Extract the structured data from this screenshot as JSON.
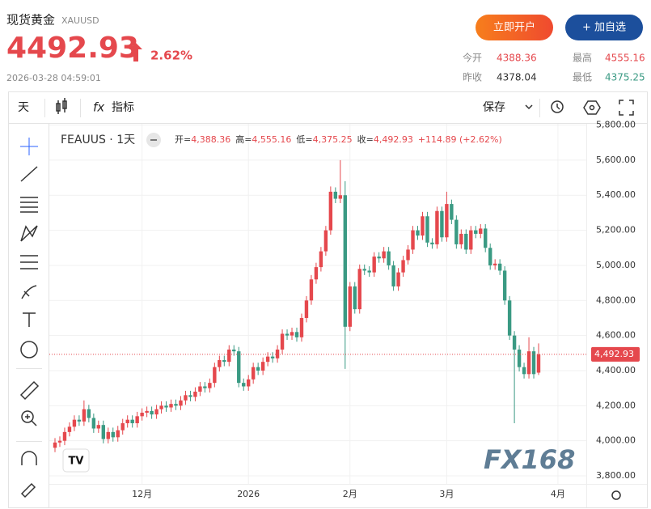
{
  "header": {
    "title": "现货黄金",
    "symbol": "XAUUSD",
    "price": "4492.93",
    "change": "2.62%",
    "timestamp": "2026-03-28 04:59:01",
    "buttons": [
      "立即开户",
      "+ 加自选"
    ],
    "stats": [
      {
        "label": "今开",
        "value": "4388.36"
      },
      {
        "label": "最高",
        "value": "4555.16"
      },
      {
        "label": "昨收",
        "value": "4378.04"
      },
      {
        "label": "最低",
        "value": "4375.25"
      }
    ]
  },
  "toolbar": {
    "interval": "天",
    "indicators": "指标",
    "save": "保存"
  },
  "watermark": "FX168",
  "chart_data": {
    "type": "candlestick",
    "symbol_label": "FEAUUS · 1天",
    "ohlc_legend": [
      {
        "label": "开=",
        "value": "4,388.36"
      },
      {
        "label": "高=",
        "value": "4,555.16"
      },
      {
        "label": "低=",
        "value": "4,375.25"
      },
      {
        "label": "收=",
        "value": "4,492.93"
      }
    ],
    "change_label": "+114.89 (+2.62%)",
    "up_color": "#e5484d",
    "down_color": "#3a9a83",
    "categories": [
      null,
      null,
      null,
      null,
      null,
      null,
      null,
      null,
      null,
      null,
      null,
      null,
      null,
      null,
      null,
      null,
      null,
      null,
      "12月",
      null,
      null,
      null,
      null,
      null,
      null,
      null,
      null,
      null,
      null,
      null,
      null,
      null,
      null,
      null,
      null,
      null,
      null,
      null,
      null,
      null,
      "2026",
      null,
      null,
      null,
      null,
      null,
      null,
      null,
      null,
      null,
      null,
      null,
      null,
      null,
      null,
      null,
      null,
      null,
      null,
      null,
      null,
      "2月",
      null,
      null,
      null,
      null,
      null,
      null,
      null,
      null,
      null,
      null,
      null,
      null,
      null,
      null,
      null,
      null,
      null,
      null,
      null,
      "3月",
      null,
      null,
      null,
      null,
      null,
      null,
      null,
      null,
      null,
      null,
      null,
      null,
      null,
      null,
      null,
      null,
      null,
      null,
      null,
      null,
      null,
      null,
      "4月",
      null,
      null,
      null,
      null,
      null
    ],
    "open": [
      3960,
      3990,
      4000,
      4050,
      4080,
      4120,
      4110,
      4180,
      4130,
      4070,
      4090,
      4010,
      4050,
      4020,
      4060,
      4100,
      4120,
      4100,
      4140,
      4160,
      4170,
      4150,
      4180,
      4200,
      4190,
      4210,
      4200,
      4230,
      4260,
      4250,
      4280,
      4310,
      4300,
      4330,
      4420,
      4460,
      4450,
      4520,
      4510,
      4330,
      4310,
      4350,
      4420,
      4400,
      4450,
      4480,
      4470,
      4520,
      4610,
      4600,
      4620,
      4590,
      4700,
      4800,
      4920,
      4990,
      5080,
      5200,
      5420,
      5380,
      5400,
      4650,
      4880,
      4750,
      4980,
      4970,
      4960,
      5050,
      5040,
      5080,
      5000,
      4880,
      4960,
      5030,
      5090,
      5200,
      5170,
      5280,
      5130,
      5120,
      5310,
      5160,
      5350,
      5260,
      5120,
      5180,
      5090,
      5200,
      5180,
      5210,
      5100,
      5000,
      5010,
      4970,
      4800,
      4600,
      4520,
      4420,
      4380,
      4510,
      4388.36,
      null,
      null,
      null,
      null,
      null,
      null,
      null,
      null,
      null
    ],
    "high": [
      4015,
      4025,
      4075,
      4105,
      4145,
      4145,
      4230,
      4205,
      4155,
      4115,
      4115,
      4075,
      4075,
      4085,
      4125,
      4145,
      4145,
      4165,
      4185,
      4195,
      4195,
      4205,
      4225,
      4225,
      4235,
      4235,
      4255,
      4285,
      4285,
      4305,
      4335,
      4335,
      4355,
      4445,
      4485,
      4485,
      4545,
      4545,
      4535,
      4355,
      4375,
      4445,
      4445,
      4475,
      4505,
      4505,
      4545,
      4635,
      4635,
      4645,
      4645,
      4725,
      4825,
      4945,
      5015,
      5105,
      5225,
      5450,
      5445,
      5600,
      5480,
      4905,
      4905,
      5005,
      5005,
      4995,
      5075,
      5075,
      5105,
      5105,
      5025,
      4985,
      5055,
      5115,
      5225,
      5225,
      5305,
      5305,
      5155,
      5335,
      5335,
      5420,
      5375,
      5285,
      5205,
      5205,
      5225,
      5225,
      5235,
      5235,
      5125,
      5035,
      5035,
      4995,
      4825,
      4625,
      4545,
      4445,
      4590,
      4535,
      4555.16,
      null,
      null,
      null,
      null,
      null,
      null,
      null,
      null,
      null
    ],
    "low": [
      3935,
      3965,
      3975,
      4025,
      4055,
      4085,
      4085,
      4105,
      4045,
      4045,
      3985,
      3985,
      3995,
      3995,
      4035,
      4075,
      4075,
      4075,
      4115,
      4135,
      4125,
      4125,
      4155,
      4165,
      4165,
      4175,
      4175,
      4205,
      4225,
      4225,
      4255,
      4275,
      4275,
      4305,
      4395,
      4425,
      4425,
      4485,
      4305,
      4285,
      4285,
      4325,
      4375,
      4375,
      4425,
      4445,
      4445,
      4495,
      4575,
      4575,
      4565,
      4565,
      4675,
      4775,
      4895,
      4965,
      5055,
      5175,
      5355,
      5355,
      4410,
      4625,
      4725,
      4725,
      4945,
      4935,
      4935,
      5015,
      5015,
      4975,
      4855,
      4855,
      4935,
      5005,
      5065,
      5145,
      5145,
      5105,
      5095,
      5095,
      5135,
      5135,
      5235,
      5095,
      5095,
      5065,
      5065,
      5155,
      5155,
      5075,
      4975,
      4975,
      4945,
      4775,
      4575,
      4100,
      4395,
      4355,
      4355,
      4355,
      4375.25,
      null,
      null,
      null,
      null,
      null,
      null,
      null,
      null,
      null
    ],
    "close": [
      3990,
      4000,
      4050,
      4080,
      4120,
      4110,
      4180,
      4130,
      4070,
      4090,
      4010,
      4050,
      4020,
      4060,
      4100,
      4120,
      4100,
      4140,
      4160,
      4170,
      4150,
      4180,
      4200,
      4190,
      4210,
      4200,
      4230,
      4260,
      4250,
      4280,
      4310,
      4300,
      4330,
      4420,
      4460,
      4450,
      4520,
      4510,
      4330,
      4310,
      4350,
      4420,
      4400,
      4450,
      4480,
      4470,
      4520,
      4610,
      4600,
      4620,
      4590,
      4700,
      4800,
      4920,
      4990,
      5080,
      5200,
      5420,
      5380,
      5400,
      4650,
      4880,
      4750,
      4980,
      4970,
      4960,
      5050,
      5040,
      5080,
      5000,
      4880,
      4960,
      5030,
      5090,
      5200,
      5170,
      5280,
      5130,
      5120,
      5310,
      5160,
      5350,
      5260,
      5120,
      5180,
      5090,
      5200,
      5180,
      5210,
      5100,
      5000,
      5010,
      4970,
      4800,
      4600,
      4520,
      4420,
      4380,
      4510,
      4380,
      4492.93,
      null,
      null,
      null,
      null,
      null,
      null,
      null,
      null,
      null
    ],
    "last_price": {
      "value": 4492.93,
      "label": "4,492.93"
    },
    "ylim": [
      3754,
      5821
    ],
    "yticks": [
      {
        "value": 3800,
        "label": "3,800.00"
      },
      {
        "value": 4000,
        "label": "4,000.00"
      },
      {
        "value": 4200,
        "label": "4,200.00"
      },
      {
        "value": 4400,
        "label": "4,400.00"
      },
      {
        "value": 4600,
        "label": "4,600.00"
      },
      {
        "value": 4800,
        "label": "4,800.00"
      },
      {
        "value": 5000,
        "label": "5,000.00"
      },
      {
        "value": 5200,
        "label": "5,200.00"
      },
      {
        "value": 5400,
        "label": "5,400.00"
      },
      {
        "value": 5600,
        "label": "5,600.00"
      },
      {
        "value": 5800,
        "label": "5,800.00"
      }
    ],
    "grid": true
  }
}
